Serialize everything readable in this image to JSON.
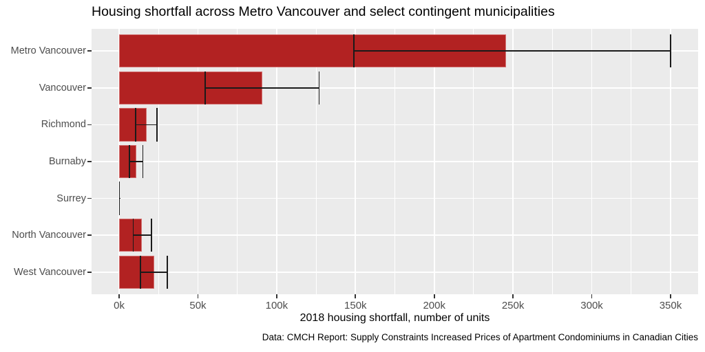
{
  "title": "Housing shortfall across Metro Vancouver and select contingent municipalities",
  "chart_data": {
    "type": "bar",
    "orientation": "horizontal",
    "title": "Housing shortfall across Metro Vancouver and select contingent municipalities",
    "xlabel": "2018 housing shortfall, number of units",
    "ylabel": "",
    "caption": "Data: CMCH Report: Supply Constraints Increased Prices of Apartment Condominiums in Canadian Cities",
    "unit": "thousands of units",
    "categories": [
      "Metro Vancouver",
      "Vancouver",
      "Richmond",
      "Burnaby",
      "Surrey",
      "North Vancouver",
      "West Vancouver"
    ],
    "values": [
      245.5,
      91,
      17.5,
      11,
      0.2,
      14.6,
      22.2
    ],
    "error_low": [
      149,
      54.5,
      10.5,
      6.6,
      0.2,
      9,
      13.5
    ],
    "error_high": [
      350,
      127,
      24,
      15,
      0.2,
      20.4,
      30.5
    ],
    "x_ticks": [
      "0k",
      "50k",
      "100k",
      "150k",
      "200k",
      "250k",
      "300k",
      "350k"
    ],
    "x_tick_values": [
      0,
      50,
      100,
      150,
      200,
      250,
      300,
      350
    ],
    "x_minor_tick_values": [
      25,
      75,
      125,
      175,
      225,
      275,
      325
    ],
    "xlim": [
      -17.5,
      367.5
    ],
    "grid": true,
    "legend": "none",
    "colors": {
      "bar": "#B22222",
      "panel_bg": "#EBEBEB",
      "grid": "#FFFFFF",
      "errorbar": "#1A1A1A",
      "tick_label": "#4D4D4D",
      "title_text": "#000000"
    }
  }
}
